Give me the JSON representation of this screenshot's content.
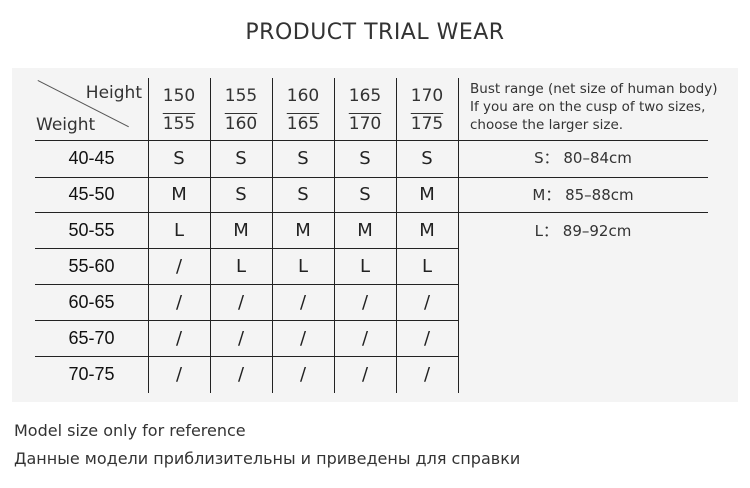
{
  "title": "PRODUCT TRIAL WEAR",
  "table": {
    "height_label": "Height",
    "weight_label": "Weight",
    "heights": [
      [
        "150",
        "155"
      ],
      [
        "155",
        "160"
      ],
      [
        "160",
        "165"
      ],
      [
        "165",
        "170"
      ],
      [
        "170",
        "175"
      ]
    ],
    "rows": [
      {
        "weight": "40-45",
        "sizes": [
          "S",
          "S",
          "S",
          "S",
          "S"
        ]
      },
      {
        "weight": "45-50",
        "sizes": [
          "M",
          "S",
          "S",
          "S",
          "M"
        ]
      },
      {
        "weight": "50-55",
        "sizes": [
          "L",
          "M",
          "M",
          "M",
          "M"
        ]
      },
      {
        "weight": "55-60",
        "sizes": [
          "/",
          "L",
          "L",
          "L",
          "L"
        ]
      },
      {
        "weight": "60-65",
        "sizes": [
          "/",
          "/",
          "/",
          "/",
          "/"
        ]
      },
      {
        "weight": "65-70",
        "sizes": [
          "/",
          "/",
          "/",
          "/",
          "/"
        ]
      },
      {
        "weight": "70-75",
        "sizes": [
          "/",
          "/",
          "/",
          "/",
          "/"
        ]
      }
    ]
  },
  "bust": {
    "note": [
      "Bust range (net size of human body)",
      "If you are on the cusp of two sizes,",
      "choose the larger size."
    ],
    "items": [
      "S： 80–84cm",
      "M： 85–88cm",
      "L： 89–92cm"
    ]
  },
  "footer": [
    "Model size only for reference",
    "Данные модели приблизительны и приведены для справки"
  ]
}
